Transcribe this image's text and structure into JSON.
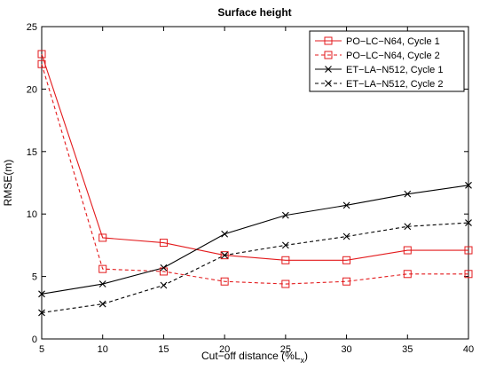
{
  "chart_data": {
    "type": "line",
    "title": "Surface height",
    "xlabel_main": "Cut−off distance (%L",
    "xlabel_sub": "x",
    "xlabel_end": ")",
    "ylabel": "RMSE(m)",
    "x": [
      5,
      10,
      15,
      20,
      25,
      30,
      35,
      40
    ],
    "xlim": [
      5,
      40
    ],
    "ylim": [
      0,
      25
    ],
    "xticks": [
      "5",
      "10",
      "15",
      "20",
      "25",
      "30",
      "35",
      "40"
    ],
    "yticks": [
      "0",
      "5",
      "10",
      "15",
      "20",
      "25"
    ],
    "grid": false,
    "legend_position": "top-right",
    "series": [
      {
        "name": "PO−LC−N64, Cycle 1",
        "color": "#e31a1c",
        "dash": "solid",
        "marker": "square",
        "values": [
          22.8,
          8.1,
          7.7,
          6.7,
          6.3,
          6.3,
          7.1,
          7.1
        ]
      },
      {
        "name": "PO−LC−N64, Cycle 2",
        "color": "#e31a1c",
        "dash": "dashed",
        "marker": "square",
        "values": [
          22.0,
          5.6,
          5.4,
          4.6,
          4.4,
          4.6,
          5.2,
          5.2
        ]
      },
      {
        "name": "ET−LA−N512, Cycle 1",
        "color": "#000000",
        "dash": "solid",
        "marker": "x",
        "values": [
          3.6,
          4.4,
          5.7,
          8.4,
          9.9,
          10.7,
          11.6,
          12.3
        ]
      },
      {
        "name": "ET−LA−N512, Cycle 2",
        "color": "#000000",
        "dash": "dashed",
        "marker": "x",
        "values": [
          2.1,
          2.8,
          4.3,
          6.7,
          7.5,
          8.2,
          9.0,
          9.3
        ]
      }
    ]
  }
}
